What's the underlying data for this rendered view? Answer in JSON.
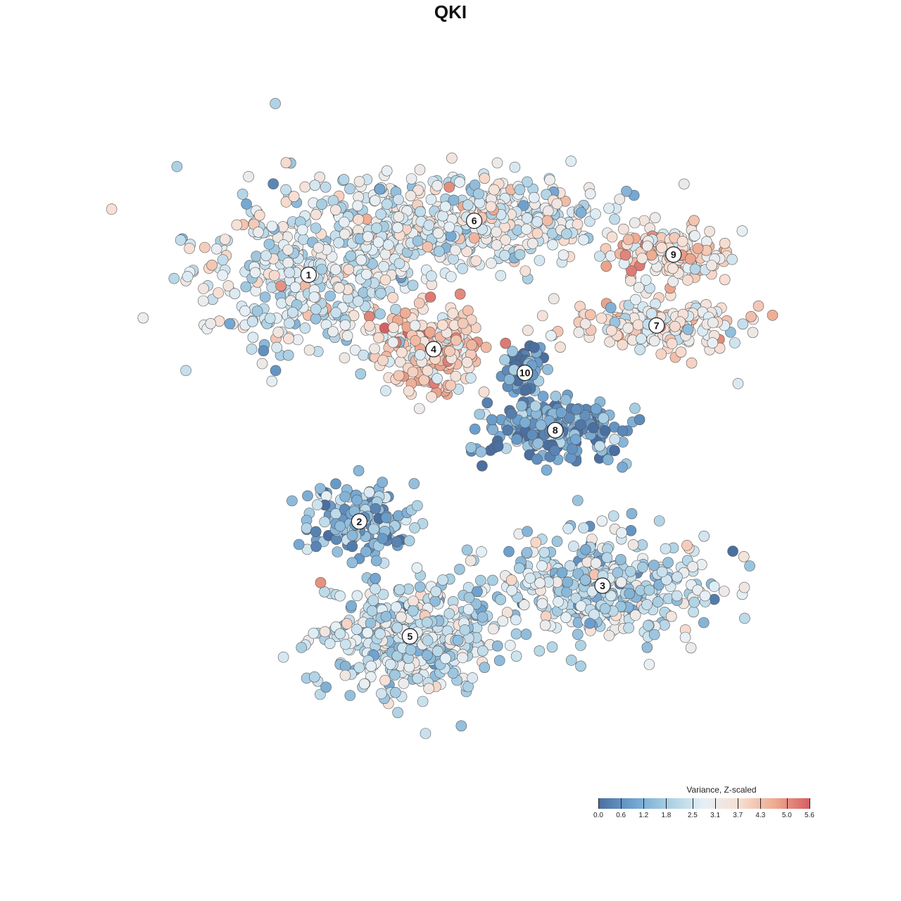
{
  "chart_data": {
    "type": "scatter",
    "title": "QKI",
    "xlabel": "",
    "ylabel": "",
    "grid": false,
    "legend": {
      "title": "Variance, Z-scaled",
      "placement": "bottom-right",
      "ticks": [
        "0.0",
        "0.6",
        "1.2",
        "1.8",
        "2.5",
        "3.1",
        "3.7",
        "4.3",
        "5.0",
        "5.6"
      ],
      "range": [
        0.0,
        5.6
      ],
      "colors": [
        "#4a6fa0",
        "#6fa3d0",
        "#a9cfe3",
        "#e6f0f6",
        "#f7dfd3",
        "#eeab91",
        "#d65f63"
      ]
    },
    "clusters": [
      {
        "label": "1",
        "x": -0.42,
        "y": 0.52,
        "mean_value": 2.6
      },
      {
        "label": "2",
        "x": -0.27,
        "y": -0.21,
        "mean_value": 1.2
      },
      {
        "label": "3",
        "x": 0.45,
        "y": -0.4,
        "mean_value": 2.2
      },
      {
        "label": "4",
        "x": -0.05,
        "y": 0.3,
        "mean_value": 3.9
      },
      {
        "label": "5",
        "x": -0.12,
        "y": -0.55,
        "mean_value": 2.3
      },
      {
        "label": "6",
        "x": 0.07,
        "y": 0.68,
        "mean_value": 2.8
      },
      {
        "label": "7",
        "x": 0.61,
        "y": 0.37,
        "mean_value": 3.3
      },
      {
        "label": "8",
        "x": 0.31,
        "y": 0.06,
        "mean_value": 0.8
      },
      {
        "label": "9",
        "x": 0.66,
        "y": 0.58,
        "mean_value": 3.7
      },
      {
        "label": "10",
        "x": 0.22,
        "y": 0.23,
        "mean_value": 0.5
      }
    ]
  }
}
